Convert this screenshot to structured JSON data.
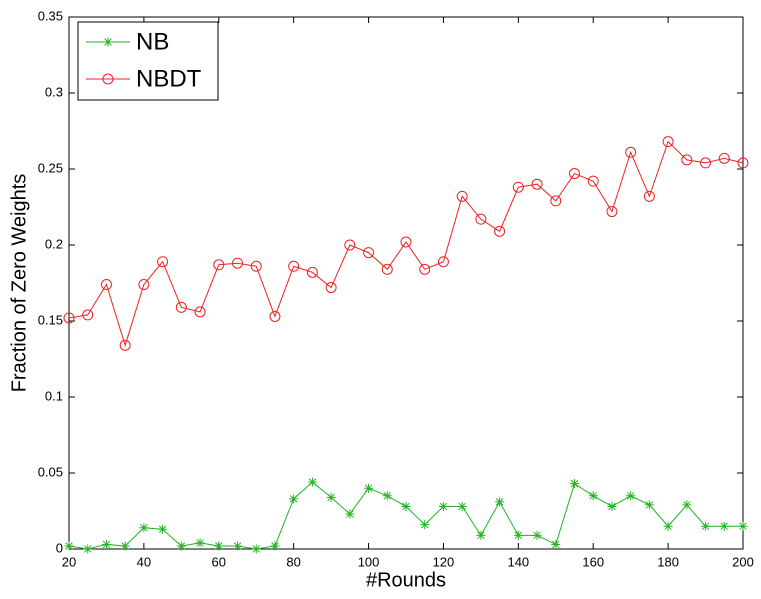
{
  "chart_data": {
    "type": "line",
    "x_label": "#Rounds",
    "y_label": "Fraction of Zero Weights",
    "x": [
      20,
      25,
      30,
      35,
      40,
      45,
      50,
      55,
      60,
      65,
      70,
      75,
      80,
      85,
      90,
      95,
      100,
      105,
      110,
      115,
      120,
      125,
      130,
      135,
      140,
      145,
      150,
      155,
      160,
      165,
      170,
      175,
      180,
      185,
      190,
      195,
      200
    ],
    "series": [
      {
        "name": "NB",
        "color": "#22b422",
        "marker": "asterisk",
        "values": [
          0.002,
          0,
          0.003,
          0.002,
          0.014,
          0.013,
          0.002,
          0.004,
          0.002,
          0.002,
          0,
          0.002,
          0.033,
          0.044,
          0.034,
          0.023,
          0.04,
          0.035,
          0.028,
          0.016,
          0.028,
          0.028,
          0.009,
          0.031,
          0.009,
          0.009,
          0.003,
          0.043,
          0.035,
          0.028,
          0.035,
          0.029,
          0.015,
          0.029,
          0.015,
          0.015,
          0.015
        ]
      },
      {
        "name": "NBDT",
        "color": "#ee2222",
        "marker": "circle",
        "values": [
          0.152,
          0.154,
          0.174,
          0.134,
          0.174,
          0.189,
          0.159,
          0.156,
          0.187,
          0.188,
          0.186,
          0.153,
          0.186,
          0.182,
          0.172,
          0.2,
          0.195,
          0.184,
          0.202,
          0.184,
          0.189,
          0.232,
          0.217,
          0.209,
          0.238,
          0.24,
          0.229,
          0.247,
          0.242,
          0.222,
          0.261,
          0.232,
          0.268,
          0.256,
          0.254,
          0.257,
          0.254
        ]
      }
    ],
    "xlim": [
      20,
      200
    ],
    "xticks": [
      20,
      40,
      60,
      80,
      100,
      120,
      140,
      160,
      180,
      200
    ],
    "ylim": [
      0,
      0.35
    ],
    "yticks": [
      0,
      0.05,
      0.1,
      0.15,
      0.2,
      0.25,
      0.3,
      0.35
    ],
    "grid": false,
    "legend": "upper left"
  }
}
